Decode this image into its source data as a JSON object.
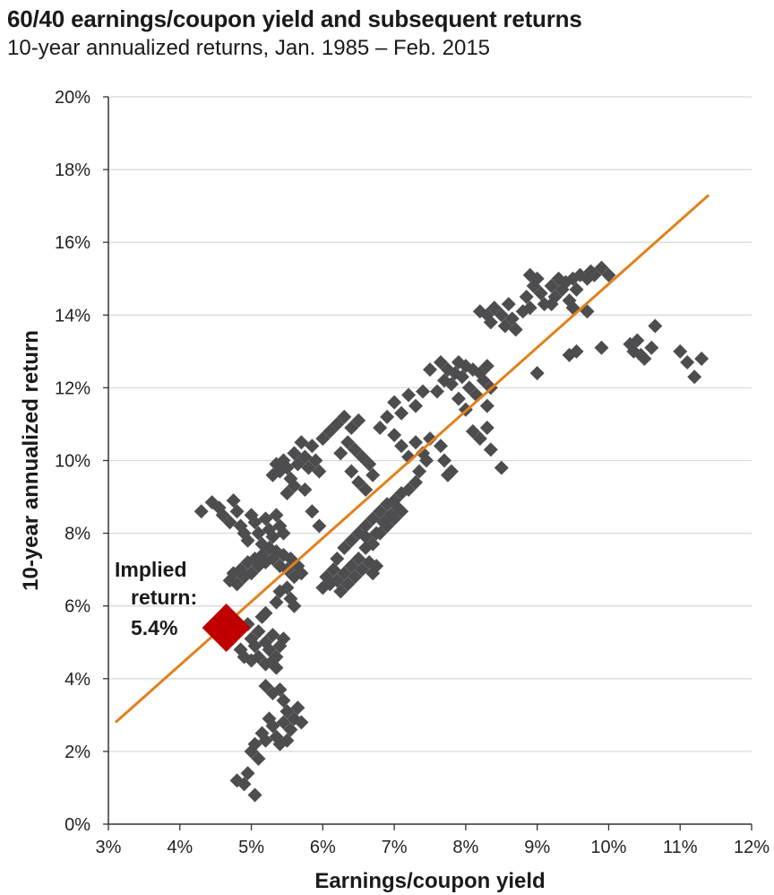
{
  "chart_data": {
    "type": "scatter",
    "title": "60/40 earnings/coupon yield and subsequent returns",
    "subtitle": "10-year annualized returns, Jan. 1985 – Feb. 2015",
    "xlabel": "Earnings/coupon yield",
    "ylabel": "10-year annualized return",
    "xlim": [
      3,
      12
    ],
    "ylim": [
      0,
      20
    ],
    "x_ticks": [
      3,
      4,
      5,
      6,
      7,
      8,
      9,
      10,
      11,
      12
    ],
    "y_ticks": [
      0,
      2,
      4,
      6,
      8,
      10,
      12,
      14,
      16,
      18,
      20
    ],
    "x_tick_labels": [
      "3%",
      "4%",
      "5%",
      "6%",
      "7%",
      "8%",
      "9%",
      "10%",
      "11%",
      "12%"
    ],
    "y_tick_labels": [
      "0%",
      "2%",
      "4%",
      "6%",
      "8%",
      "10%",
      "12%",
      "14%",
      "16%",
      "18%",
      "20%"
    ],
    "grid": "horizontal",
    "colors": {
      "points": "#4d4d4f",
      "trendline": "#e3801c",
      "highlight": "#c00000",
      "grid": "#d9d9d9",
      "axis": "#333333"
    },
    "trendline": {
      "x": [
        3.1,
        11.4
      ],
      "y": [
        2.8,
        17.3
      ]
    },
    "highlight": {
      "x": 4.65,
      "y": 5.4
    },
    "annotation": {
      "lines": [
        "Implied",
        "return:",
        "5.4%"
      ]
    },
    "points": [
      [
        4.3,
        8.6
      ],
      [
        4.45,
        8.85
      ],
      [
        4.55,
        8.7
      ],
      [
        4.6,
        8.5
      ],
      [
        4.7,
        8.3
      ],
      [
        4.75,
        8.9
      ],
      [
        4.8,
        8.6
      ],
      [
        4.85,
        8.2
      ],
      [
        4.9,
        8.0
      ],
      [
        4.95,
        7.8
      ],
      [
        5.0,
        8.5
      ],
      [
        5.05,
        8.3
      ],
      [
        5.1,
        8.0
      ],
      [
        5.15,
        7.7
      ],
      [
        5.2,
        8.4
      ],
      [
        5.25,
        8.1
      ],
      [
        5.3,
        7.9
      ],
      [
        5.35,
        8.5
      ],
      [
        5.4,
        8.2
      ],
      [
        5.45,
        8.0
      ],
      [
        4.7,
        6.7
      ],
      [
        4.75,
        6.9
      ],
      [
        4.8,
        6.6
      ],
      [
        4.85,
        7.0
      ],
      [
        4.9,
        6.8
      ],
      [
        4.95,
        7.2
      ],
      [
        5.0,
        6.9
      ],
      [
        5.05,
        7.3
      ],
      [
        5.1,
        7.1
      ],
      [
        5.15,
        7.4
      ],
      [
        5.2,
        7.2
      ],
      [
        5.25,
        7.6
      ],
      [
        5.3,
        7.3
      ],
      [
        5.35,
        7.5
      ],
      [
        5.4,
        7.1
      ],
      [
        5.45,
        7.4
      ],
      [
        5.5,
        7.0
      ],
      [
        5.55,
        7.3
      ],
      [
        5.6,
        6.8
      ],
      [
        5.65,
        7.1
      ],
      [
        5.7,
        6.9
      ],
      [
        5.5,
        6.5
      ],
      [
        5.55,
        6.2
      ],
      [
        5.6,
        6.0
      ],
      [
        5.4,
        6.4
      ],
      [
        5.35,
        6.1
      ],
      [
        5.3,
        9.6
      ],
      [
        5.35,
        9.9
      ],
      [
        5.4,
        9.7
      ],
      [
        5.45,
        10.0
      ],
      [
        5.5,
        9.8
      ],
      [
        5.55,
        9.5
      ],
      [
        5.6,
        10.2
      ],
      [
        5.65,
        9.9
      ],
      [
        5.7,
        10.5
      ],
      [
        5.75,
        10.1
      ],
      [
        5.8,
        9.8
      ],
      [
        5.85,
        10.4
      ],
      [
        5.9,
        10.0
      ],
      [
        5.95,
        9.7
      ],
      [
        6.0,
        10.6
      ],
      [
        5.5,
        9.1
      ],
      [
        5.6,
        9.3
      ],
      [
        5.75,
        9.2
      ],
      [
        5.85,
        8.6
      ],
      [
        5.95,
        8.2
      ],
      [
        6.0,
        6.5
      ],
      [
        6.05,
        6.8
      ],
      [
        6.1,
        6.6
      ],
      [
        6.15,
        7.0
      ],
      [
        6.2,
        6.7
      ],
      [
        6.25,
        6.4
      ],
      [
        6.3,
        6.9
      ],
      [
        6.35,
        6.6
      ],
      [
        6.4,
        7.1
      ],
      [
        6.45,
        6.8
      ],
      [
        6.5,
        7.3
      ],
      [
        6.55,
        7.0
      ],
      [
        6.6,
        7.6
      ],
      [
        6.65,
        7.2
      ],
      [
        6.7,
        6.9
      ],
      [
        6.75,
        7.1
      ],
      [
        6.2,
        7.3
      ],
      [
        6.3,
        7.6
      ],
      [
        6.4,
        7.8
      ],
      [
        6.5,
        8.0
      ],
      [
        6.6,
        8.2
      ],
      [
        6.7,
        8.4
      ],
      [
        6.75,
        8.0
      ],
      [
        6.8,
        8.6
      ],
      [
        6.85,
        8.3
      ],
      [
        6.9,
        8.8
      ],
      [
        6.95,
        8.5
      ],
      [
        7.0,
        8.9
      ],
      [
        7.05,
        8.7
      ],
      [
        7.1,
        9.1
      ],
      [
        6.8,
        8.0
      ],
      [
        6.9,
        8.2
      ],
      [
        7.0,
        8.4
      ],
      [
        7.1,
        8.6
      ],
      [
        6.7,
        7.7
      ],
      [
        6.6,
        7.9
      ],
      [
        6.1,
        10.8
      ],
      [
        6.2,
        11.0
      ],
      [
        6.3,
        11.2
      ],
      [
        6.4,
        10.9
      ],
      [
        6.5,
        11.1
      ],
      [
        6.35,
        10.5
      ],
      [
        6.45,
        10.3
      ],
      [
        6.55,
        10.1
      ],
      [
        6.65,
        9.9
      ],
      [
        6.7,
        9.6
      ],
      [
        6.6,
        9.2
      ],
      [
        6.5,
        9.4
      ],
      [
        6.4,
        9.7
      ],
      [
        6.25,
        10.2
      ],
      [
        6.8,
        10.9
      ],
      [
        6.9,
        11.2
      ],
      [
        7.0,
        11.6
      ],
      [
        7.1,
        11.3
      ],
      [
        7.2,
        11.8
      ],
      [
        7.3,
        11.5
      ],
      [
        7.4,
        11.9
      ],
      [
        7.0,
        10.7
      ],
      [
        7.1,
        10.4
      ],
      [
        7.2,
        10.1
      ],
      [
        7.3,
        10.5
      ],
      [
        7.4,
        10.2
      ],
      [
        7.5,
        10.6
      ],
      [
        7.45,
        10.0
      ],
      [
        7.3,
        9.4
      ],
      [
        7.2,
        9.2
      ],
      [
        7.35,
        9.7
      ],
      [
        7.6,
        11.9
      ],
      [
        7.7,
        12.2
      ],
      [
        7.75,
        12.5
      ],
      [
        7.8,
        12.1
      ],
      [
        7.85,
        12.4
      ],
      [
        7.9,
        12.7
      ],
      [
        7.95,
        12.3
      ],
      [
        8.0,
        12.6
      ],
      [
        8.05,
        12.0
      ],
      [
        8.1,
        12.5
      ],
      [
        8.2,
        12.4
      ],
      [
        8.25,
        12.2
      ],
      [
        8.3,
        12.6
      ],
      [
        8.35,
        12.0
      ],
      [
        7.5,
        12.5
      ],
      [
        7.65,
        12.7
      ],
      [
        7.9,
        11.7
      ],
      [
        8.0,
        11.4
      ],
      [
        8.15,
        11.8
      ],
      [
        8.3,
        11.5
      ],
      [
        7.65,
        10.4
      ],
      [
        7.7,
        10.0
      ],
      [
        7.8,
        9.7
      ],
      [
        7.75,
        9.6
      ],
      [
        8.1,
        10.8
      ],
      [
        8.2,
        10.6
      ],
      [
        8.3,
        10.9
      ],
      [
        8.35,
        10.3
      ],
      [
        8.5,
        9.8
      ],
      [
        8.2,
        14.1
      ],
      [
        8.3,
        14.0
      ],
      [
        8.35,
        13.8
      ],
      [
        8.4,
        14.2
      ],
      [
        8.5,
        14.0
      ],
      [
        8.55,
        13.7
      ],
      [
        8.6,
        14.3
      ],
      [
        8.65,
        13.9
      ],
      [
        8.7,
        13.6
      ],
      [
        8.8,
        14.1
      ],
      [
        8.85,
        14.5
      ],
      [
        8.9,
        14.2
      ],
      [
        8.95,
        14.8
      ],
      [
        9.0,
        15.0
      ],
      [
        9.05,
        14.6
      ],
      [
        9.1,
        14.3
      ],
      [
        9.2,
        14.8
      ],
      [
        9.25,
        14.5
      ],
      [
        9.3,
        15.0
      ],
      [
        9.35,
        14.7
      ],
      [
        9.4,
        14.9
      ],
      [
        9.45,
        14.4
      ],
      [
        9.5,
        15.0
      ],
      [
        9.55,
        14.7
      ],
      [
        9.6,
        15.1
      ],
      [
        9.7,
        15.0
      ],
      [
        9.75,
        15.2
      ],
      [
        9.8,
        15.1
      ],
      [
        9.9,
        15.3
      ],
      [
        10.0,
        15.1
      ],
      [
        8.9,
        15.1
      ],
      [
        9.2,
        14.3
      ],
      [
        9.5,
        14.2
      ],
      [
        9.7,
        14.1
      ],
      [
        9.0,
        12.4
      ],
      [
        9.45,
        12.9
      ],
      [
        9.55,
        13.0
      ],
      [
        9.9,
        13.1
      ],
      [
        10.3,
        13.2
      ],
      [
        10.35,
        13.0
      ],
      [
        10.4,
        13.3
      ],
      [
        10.45,
        12.9
      ],
      [
        10.5,
        12.8
      ],
      [
        10.6,
        13.1
      ],
      [
        10.65,
        13.7
      ],
      [
        11.0,
        13.0
      ],
      [
        11.1,
        12.7
      ],
      [
        11.2,
        12.3
      ],
      [
        11.3,
        12.8
      ],
      [
        4.95,
        5.5
      ],
      [
        5.0,
        5.1
      ],
      [
        5.05,
        4.9
      ],
      [
        5.1,
        5.3
      ],
      [
        5.15,
        5.7
      ],
      [
        5.2,
        5.0
      ],
      [
        5.25,
        4.8
      ],
      [
        5.3,
        5.2
      ],
      [
        5.35,
        4.6
      ],
      [
        5.4,
        4.9
      ],
      [
        4.85,
        4.8
      ],
      [
        4.9,
        4.6
      ],
      [
        5.0,
        4.5
      ],
      [
        5.1,
        4.6
      ],
      [
        5.2,
        4.4
      ],
      [
        5.3,
        4.5
      ],
      [
        5.35,
        4.3
      ],
      [
        5.45,
        5.1
      ],
      [
        5.2,
        5.8
      ],
      [
        5.2,
        3.8
      ],
      [
        5.3,
        3.6
      ],
      [
        5.4,
        3.7
      ],
      [
        5.45,
        3.4
      ],
      [
        5.25,
        2.9
      ],
      [
        5.3,
        2.7
      ],
      [
        5.35,
        2.4
      ],
      [
        5.4,
        2.2
      ],
      [
        5.45,
        2.8
      ],
      [
        5.5,
        3.1
      ],
      [
        5.55,
        2.6
      ],
      [
        5.6,
        2.9
      ],
      [
        5.65,
        3.2
      ],
      [
        5.7,
        2.8
      ],
      [
        5.5,
        2.3
      ],
      [
        5.0,
        2.0
      ],
      [
        5.05,
        2.2
      ],
      [
        5.1,
        1.8
      ],
      [
        5.15,
        2.5
      ],
      [
        5.2,
        2.3
      ],
      [
        4.8,
        1.2
      ],
      [
        4.9,
        1.1
      ],
      [
        4.95,
        1.4
      ],
      [
        5.05,
        0.8
      ]
    ]
  }
}
